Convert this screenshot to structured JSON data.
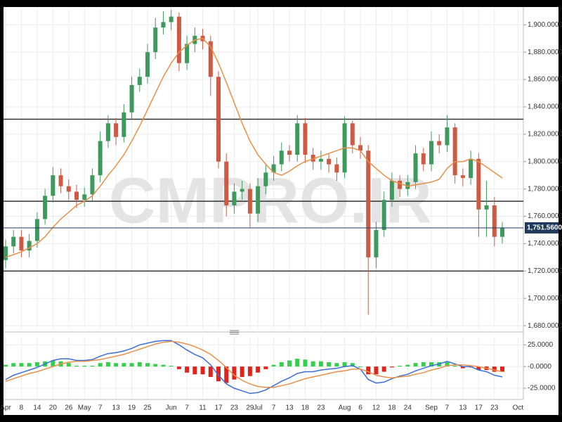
{
  "chart_data": {
    "type": "candlestick",
    "watermark": "CMPRO.IR",
    "categories": [
      "Apr",
      null,
      "8",
      null,
      "14",
      null,
      "20",
      null,
      "26",
      null,
      "May",
      null,
      "7",
      null,
      "13",
      null,
      "19",
      null,
      "25",
      null,
      null,
      "Jun",
      null,
      "7",
      null,
      "11",
      null,
      "17",
      null,
      "23",
      null,
      "29",
      "Jul",
      null,
      "7",
      null,
      "13",
      null,
      "18",
      null,
      "23",
      null,
      null,
      "Aug",
      null,
      "6",
      null,
      "12",
      null,
      "18",
      null,
      "24",
      null,
      null,
      "Sep",
      null,
      "7",
      null,
      "13",
      null,
      "17",
      null,
      "23",
      null,
      null,
      "Oct"
    ],
    "open": [
      1728,
      1738,
      1745,
      1735,
      1742,
      1758,
      1775,
      1790,
      1782,
      1778,
      1772,
      1776,
      1790,
      1815,
      1828,
      1818,
      1836,
      1856,
      1862,
      1880,
      1898,
      1902,
      1906,
      1872,
      1886,
      1892,
      1888,
      1862,
      1800,
      1768,
      1778,
      1780,
      1762,
      1782,
      1792,
      1798,
      1808,
      1805,
      1828,
      1805,
      1800,
      1802,
      1798,
      1792,
      1828,
      1812,
      1808,
      1730,
      1750,
      1772,
      1786,
      1780,
      1785,
      1806,
      1798,
      1815,
      1812,
      1825,
      1790,
      1788,
      1802,
      1765,
      1768,
      1745,
      null,
      null
    ],
    "high": [
      1743,
      1750,
      1750,
      1747,
      1763,
      1780,
      1796,
      1795,
      1787,
      1783,
      1781,
      1795,
      1822,
      1834,
      1832,
      1842,
      1862,
      1868,
      1886,
      1905,
      1910,
      1911,
      1909,
      1892,
      1898,
      1897,
      1892,
      1866,
      1806,
      1784,
      1786,
      1784,
      1788,
      1798,
      1804,
      1814,
      1812,
      1834,
      1832,
      1810,
      1808,
      1806,
      1803,
      1833,
      1830,
      1818,
      1812,
      1756,
      1778,
      1792,
      1790,
      1790,
      1812,
      1810,
      1822,
      1820,
      1834,
      1828,
      1795,
      1808,
      1806,
      1786,
      1774,
      1756,
      null,
      null
    ],
    "low": [
      1722,
      1733,
      1730,
      1730,
      1737,
      1754,
      1770,
      1777,
      1772,
      1766,
      1767,
      1771,
      1785,
      1810,
      1812,
      1814,
      1831,
      1851,
      1857,
      1875,
      1893,
      1896,
      1866,
      1867,
      1880,
      1882,
      1848,
      1795,
      1760,
      1762,
      1772,
      1752,
      1756,
      1776,
      1786,
      1793,
      1800,
      1800,
      1799,
      1794,
      1794,
      1792,
      1786,
      1788,
      1806,
      1802,
      1688,
      1722,
      1745,
      1767,
      1774,
      1775,
      1780,
      1793,
      1793,
      1806,
      1807,
      1784,
      1782,
      1783,
      1745,
      1745,
      1738,
      1740,
      null,
      null
    ],
    "close": [
      1738,
      1745,
      1735,
      1742,
      1758,
      1775,
      1790,
      1782,
      1778,
      1772,
      1776,
      1790,
      1815,
      1828,
      1818,
      1836,
      1856,
      1862,
      1880,
      1898,
      1902,
      1906,
      1872,
      1886,
      1892,
      1888,
      1862,
      1800,
      1768,
      1778,
      1780,
      1762,
      1782,
      1792,
      1798,
      1808,
      1805,
      1828,
      1805,
      1800,
      1802,
      1798,
      1792,
      1828,
      1812,
      1808,
      1730,
      1750,
      1772,
      1786,
      1780,
      1785,
      1806,
      1798,
      1815,
      1812,
      1825,
      1790,
      1788,
      1802,
      1765,
      1768,
      1745,
      1751.56,
      null,
      null
    ],
    "up_color": "#3d9a5c",
    "down_color": "#cf5a43",
    "moving_average": {
      "color": "#e8904a",
      "values": [
        1730,
        1732,
        1734,
        1737,
        1740,
        1745,
        1752,
        1758,
        1763,
        1768,
        1771,
        1775,
        1782,
        1790,
        1797,
        1805,
        1815,
        1826,
        1838,
        1850,
        1862,
        1872,
        1880,
        1885,
        1889,
        1890,
        1884,
        1872,
        1858,
        1843,
        1828,
        1815,
        1805,
        1798,
        1792,
        1790,
        1793,
        1797,
        1800,
        1802,
        1804,
        1806,
        1808,
        1810,
        1810,
        1808,
        1800,
        1795,
        1790,
        1786,
        1784,
        1782,
        1783,
        1784,
        1785,
        1787,
        1795,
        1800,
        1800,
        1802,
        1800,
        1796,
        1792,
        1788,
        null,
        null
      ]
    },
    "ylim": [
      1678,
      1913
    ],
    "yticks": [
      {
        "value": 1680,
        "label": "1,680.0000"
      },
      {
        "value": 1700,
        "label": "1,700.0000"
      },
      {
        "value": 1720,
        "label": "1,720.0000"
      },
      {
        "value": 1740,
        "label": "1,740.0000"
      },
      {
        "value": 1760,
        "label": "1,760.0000"
      },
      {
        "value": 1780,
        "label": "1,780.0000"
      },
      {
        "value": 1800,
        "label": "1,800.0000"
      },
      {
        "value": 1820,
        "label": "1,820.0000"
      },
      {
        "value": 1840,
        "label": "1,840.0000"
      },
      {
        "value": 1860,
        "label": "1,860.0000"
      },
      {
        "value": 1880,
        "label": "1,880.0000"
      },
      {
        "value": 1900,
        "label": "1,900.0000"
      }
    ],
    "grid": true,
    "levels": {
      "color": "#333333",
      "values": [
        1831,
        1771,
        1720
      ]
    },
    "last_price": {
      "value": 1751.56,
      "label": "1,751.5600",
      "color": "#1f3a5c"
    },
    "indicator": {
      "type": "macd",
      "ylim": [
        -38,
        35
      ],
      "yticks": [
        {
          "value": 25,
          "label": "25.0000"
        },
        {
          "value": 0,
          "label": "-0.0000"
        },
        {
          "value": -25,
          "label": "-25.0000"
        }
      ],
      "series": [
        {
          "color": "#3b6fd8",
          "values": [
            -15,
            -10,
            -7,
            -4,
            -1,
            3,
            7,
            9,
            9,
            7,
            7,
            8,
            12,
            15,
            16,
            18,
            21,
            25,
            27,
            29,
            30,
            30,
            25,
            19,
            14,
            10,
            2,
            -10,
            -20,
            -25,
            -28,
            -31,
            -30,
            -27,
            -22,
            -17,
            -13,
            -8,
            -6,
            -6,
            -4,
            -3,
            -2,
            0,
            1,
            -3,
            -15,
            -19,
            -18,
            -14,
            -11,
            -9,
            -5,
            -2,
            1,
            3,
            6,
            3,
            0,
            0,
            -4,
            -6,
            -10,
            -12,
            null,
            null
          ]
        },
        {
          "color": "#e8904a",
          "values": [
            -17,
            -14,
            -11,
            -8,
            -6,
            -3,
            0,
            3,
            5,
            6,
            6,
            7,
            8,
            10,
            12,
            14,
            17,
            20,
            23,
            26,
            28,
            29,
            28,
            26,
            23,
            19,
            14,
            7,
            -1,
            -10,
            -16,
            -20,
            -23,
            -24,
            -24,
            -22,
            -20,
            -17,
            -14,
            -12,
            -10,
            -8,
            -6,
            -5,
            -3,
            -3,
            -6,
            -10,
            -12,
            -13,
            -12,
            -11,
            -9,
            -7,
            -4,
            -2,
            1,
            2,
            2,
            1,
            0,
            -2,
            -4,
            -6,
            null,
            null
          ]
        }
      ],
      "histogram": {
        "positive_color": "#33d04a",
        "negative_color": "#e0241c",
        "values": [
          2,
          4,
          4,
          4,
          5,
          6,
          7,
          6,
          4,
          1,
          1,
          1,
          4,
          5,
          4,
          4,
          4,
          5,
          4,
          3,
          2,
          1,
          -3,
          -7,
          -9,
          -9,
          -12,
          -17,
          -19,
          -15,
          -12,
          -11,
          -7,
          -3,
          2,
          5,
          7,
          9,
          8,
          6,
          6,
          5,
          4,
          5,
          4,
          0,
          -9,
          -9,
          -6,
          -1,
          1,
          2,
          4,
          5,
          5,
          5,
          5,
          1,
          -2,
          -1,
          -4,
          -4,
          -6,
          -6,
          null,
          null
        ]
      }
    }
  }
}
